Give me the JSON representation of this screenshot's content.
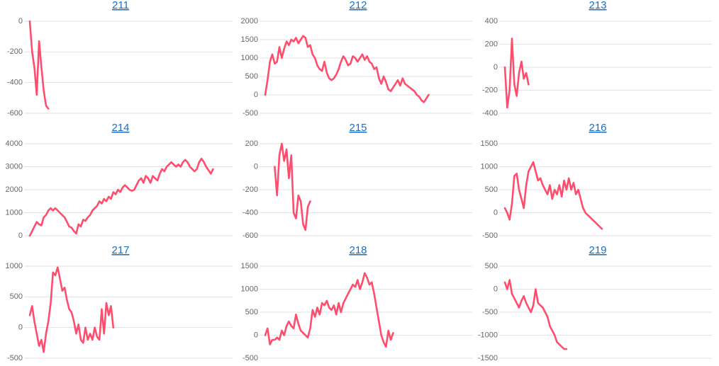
{
  "chart_data": [
    {
      "type": "line",
      "title": "211",
      "color": "#ff4d6d",
      "ylim": [
        -600,
        0
      ],
      "yticks": [
        -600,
        -400,
        -200,
        0
      ],
      "grid": true,
      "values": [
        0,
        -200,
        -300,
        -480,
        -130,
        -300,
        -450,
        -550,
        -570
      ]
    },
    {
      "type": "line",
      "title": "212",
      "color": "#ff4d6d",
      "ylim": [
        -500,
        2000
      ],
      "yticks": [
        -500,
        0,
        500,
        1000,
        1500,
        2000
      ],
      "grid": true,
      "values": [
        0,
        400,
        900,
        1100,
        850,
        900,
        1300,
        1000,
        1250,
        1450,
        1350,
        1500,
        1450,
        1550,
        1400,
        1500,
        1600,
        1550,
        1300,
        1350,
        1100,
        1000,
        800,
        700,
        650,
        900,
        600,
        450,
        400,
        450,
        550,
        700,
        900,
        1050,
        950,
        800,
        850,
        1050,
        1000,
        900,
        1000,
        1100,
        950,
        1050,
        900,
        850,
        700,
        750,
        450,
        300,
        500,
        350,
        150,
        100,
        200,
        300,
        400,
        250,
        450,
        300,
        250,
        200,
        150,
        100,
        0,
        -50,
        -150,
        -200,
        -100,
        0
      ]
    },
    {
      "type": "line",
      "title": "213",
      "color": "#ff4d6d",
      "ylim": [
        -400,
        400
      ],
      "yticks": [
        -400,
        -200,
        0,
        200,
        400
      ],
      "grid": true,
      "values": [
        0,
        -350,
        -200,
        250,
        -150,
        -250,
        -50,
        50,
        -100,
        -50,
        -150
      ]
    },
    {
      "type": "line",
      "title": "214",
      "color": "#ff4d6d",
      "ylim": [
        0,
        4000
      ],
      "yticks": [
        0,
        1000,
        2000,
        3000,
        4000
      ],
      "grid": true,
      "values": [
        0,
        200,
        400,
        600,
        500,
        450,
        800,
        900,
        1100,
        1200,
        1100,
        1200,
        1100,
        1000,
        900,
        800,
        600,
        400,
        350,
        200,
        100,
        500,
        400,
        700,
        650,
        800,
        900,
        1100,
        1200,
        1300,
        1500,
        1400,
        1600,
        1500,
        1700,
        1600,
        1900,
        1800,
        2000,
        1900,
        2100,
        2200,
        2100,
        2000,
        1950,
        2000,
        2200,
        2400,
        2500,
        2300,
        2600,
        2500,
        2300,
        2600,
        2500,
        2400,
        2700,
        2900,
        2800,
        3000,
        3100,
        3200,
        3100,
        3000,
        3100,
        3000,
        3200,
        3300,
        3200,
        3000,
        2900,
        2800,
        2900,
        3200,
        3350,
        3200,
        3000,
        2850,
        2700,
        2900
      ]
    },
    {
      "type": "line",
      "title": "215",
      "color": "#ff4d6d",
      "ylim": [
        -600,
        200
      ],
      "yticks": [
        -600,
        -400,
        -200,
        0,
        200
      ],
      "grid": true,
      "values": [
        null,
        null,
        null,
        null,
        0,
        -250,
        100,
        200,
        50,
        150,
        -100,
        100,
        -400,
        -450,
        -250,
        -300,
        -500,
        -550,
        -350,
        -300
      ]
    },
    {
      "type": "line",
      "title": "216",
      "color": "#ff4d6d",
      "ylim": [
        -500,
        1500
      ],
      "yticks": [
        -500,
        0,
        500,
        1000,
        1500
      ],
      "grid": true,
      "values": [
        100,
        0,
        -150,
        200,
        800,
        850,
        500,
        300,
        100,
        600,
        900,
        1000,
        1100,
        900,
        700,
        750,
        600,
        500,
        400,
        600,
        300,
        500,
        400,
        600,
        350,
        700,
        500,
        750,
        500,
        650,
        400,
        500,
        300,
        100,
        0,
        -50,
        -100,
        -150,
        -200,
        -250,
        -300,
        -350
      ]
    },
    {
      "type": "line",
      "title": "217",
      "color": "#ff4d6d",
      "ylim": [
        -500,
        1000
      ],
      "yticks": [
        -500,
        0,
        500,
        1000
      ],
      "grid": true,
      "values": [
        200,
        350,
        100,
        -100,
        -300,
        -200,
        -400,
        -100,
        100,
        400,
        900,
        850,
        980,
        800,
        600,
        650,
        450,
        300,
        250,
        100,
        -100,
        50,
        -200,
        -250,
        0,
        -200,
        -100,
        -200,
        0,
        -150,
        -200,
        300,
        -100,
        400,
        200,
        350,
        0
      ]
    },
    {
      "type": "line",
      "title": "218",
      "color": "#ff4d6d",
      "ylim": [
        -500,
        1500
      ],
      "yticks": [
        -500,
        0,
        500,
        1000,
        1500
      ],
      "grid": true,
      "values": [
        0,
        150,
        -200,
        -100,
        -100,
        -50,
        -100,
        100,
        0,
        200,
        300,
        200,
        150,
        450,
        250,
        100,
        50,
        0,
        -50,
        150,
        550,
        400,
        600,
        450,
        700,
        650,
        750,
        600,
        550,
        650,
        450,
        700,
        500,
        700,
        800,
        900,
        1000,
        1100,
        1050,
        1200,
        1000,
        1150,
        1350,
        1250,
        1100,
        1150,
        900,
        600,
        300,
        0,
        -150,
        -250,
        100,
        -100,
        50
      ]
    },
    {
      "type": "line",
      "title": "219",
      "color": "#ff4d6d",
      "ylim": [
        -1500,
        500
      ],
      "yticks": [
        -1500,
        -1000,
        -500,
        0,
        500
      ],
      "grid": true,
      "values": [
        150,
        0,
        200,
        -100,
        -200,
        -300,
        -400,
        -250,
        -150,
        -300,
        -400,
        -500,
        -350,
        0,
        -300,
        -350,
        -400,
        -500,
        -600,
        -800,
        -900,
        -1000,
        -1150,
        -1200,
        -1250,
        -1300,
        -1300
      ]
    }
  ]
}
